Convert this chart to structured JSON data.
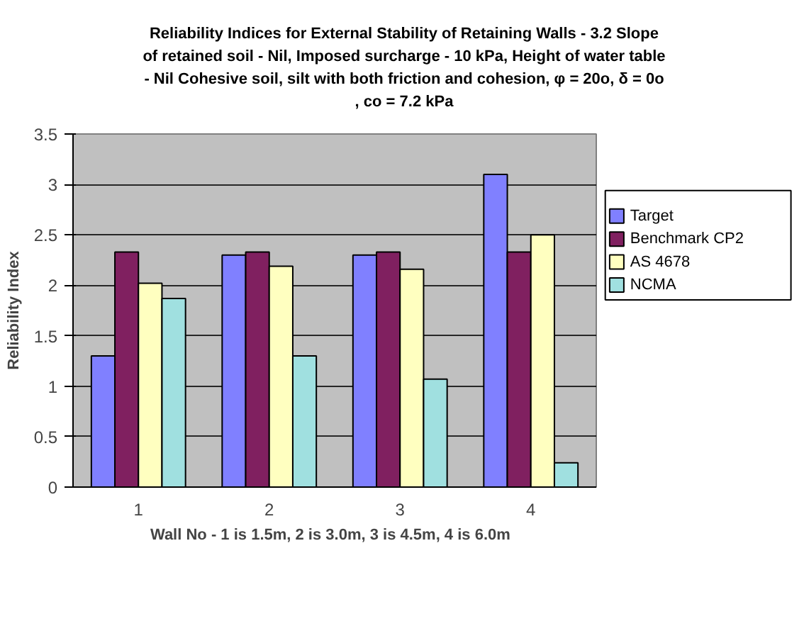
{
  "chart_data": {
    "type": "bar",
    "title": "Reliability Indices for External Stability of Retaining Walls - 3.2    Slope of retained soil - Nil, Imposed surcharge - 10 kPa,  Height of  water table - Nil   Cohesive soil, silt with both friction and cohesion, φ = 20o, δ = 0o , co = 7.2 kPa",
    "xlabel": "Wall No  -  1 is 1.5m, 2 is 3.0m, 3 is 4.5m, 4 is 6.0m",
    "ylabel": "Reliability Index",
    "categories": [
      "1",
      "2",
      "3",
      "4"
    ],
    "series": [
      {
        "name": "Target",
        "color": "#8080ff",
        "values": [
          1.3,
          2.3,
          2.3,
          3.1
        ]
      },
      {
        "name": "Benchmark CP2",
        "color": "#802060",
        "values": [
          2.33,
          2.33,
          2.33,
          2.33
        ]
      },
      {
        "name": "AS 4678",
        "color": "#ffffc0",
        "values": [
          2.02,
          2.19,
          2.16,
          2.5
        ]
      },
      {
        "name": "NCMA",
        "color": "#a0e0e0",
        "values": [
          1.87,
          1.3,
          1.07,
          0.24
        ]
      }
    ],
    "ylim": [
      0,
      3.5
    ],
    "yticks": [
      0,
      0.5,
      1,
      1.5,
      2,
      2.5,
      3,
      3.5
    ],
    "grid": "y",
    "legend": "right"
  }
}
